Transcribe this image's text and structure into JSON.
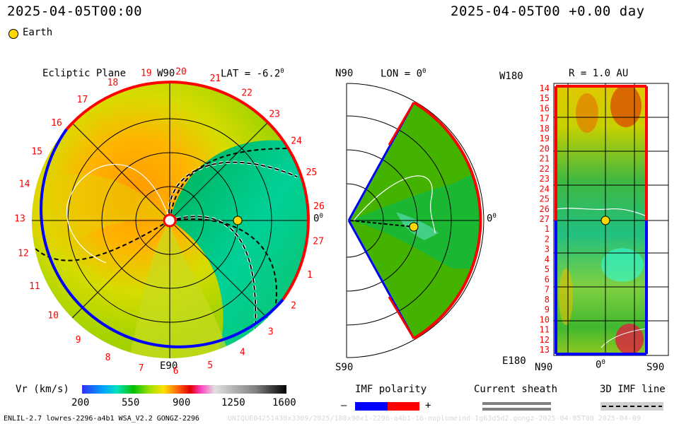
{
  "header": {
    "timestamp_left": "2025-04-05T00:00",
    "timestamp_right": "2025-04-05T00 +0.00 day",
    "legend_label": "Earth"
  },
  "colors": {
    "earth_marker": "#ffd800",
    "positive_polarity": "#ff0000",
    "negative_polarity": "#0000ff"
  },
  "panels": {
    "ecliptic": {
      "title": "Ecliptic Plane",
      "lat_label": "LAT = -6.2",
      "lat_sup": "0",
      "top_label": "W90",
      "bottom_label": "E90",
      "right_label": "0",
      "right_sup": "0",
      "carrington_labels": [
        "19",
        "20",
        "21",
        "22",
        "23",
        "24",
        "25",
        "26",
        "27",
        "1",
        "2",
        "3",
        "4",
        "5",
        "6",
        "7",
        "8",
        "9",
        "10",
        "11",
        "12",
        "13",
        "14",
        "15",
        "16",
        "17",
        "18"
      ]
    },
    "meridional": {
      "top_left": "N90",
      "lon_label": "LON = 0",
      "lon_sup": "0",
      "bottom_left": "S90",
      "right_label": "0",
      "right_sup": "0"
    },
    "radial": {
      "top_left": "W180",
      "r_label": "R = 1.0 AU",
      "bottom_left": "E180",
      "x_labels": [
        "N90",
        "0",
        "S90"
      ],
      "x_mid_sup": "0",
      "y_labels": [
        "14",
        "15",
        "16",
        "17",
        "18",
        "19",
        "20",
        "21",
        "22",
        "23",
        "24",
        "25",
        "26",
        "27",
        "1",
        "2",
        "3",
        "4",
        "5",
        "6",
        "7",
        "8",
        "9",
        "10",
        "11",
        "12",
        "13"
      ]
    }
  },
  "colorbar": {
    "label": "Vr (km/s)",
    "ticks": [
      "200",
      "550",
      "900",
      "1250",
      "1600"
    ]
  },
  "imf": {
    "title": "IMF polarity",
    "minus": "–",
    "plus": "+"
  },
  "sheath": {
    "title": "Current sheath"
  },
  "imf_line": {
    "title": "3D IMF line"
  },
  "footer": {
    "left": "ENLIL-2.7 lowres-2296-a4b1 WSA_V2.2 GONGZ-2296",
    "right": "UNIQUE04251430x3309/2025/180x90x1-2296-a4b1-16-noplumeind-1g63d5d2.gongz-2025-04-05T00 2025-04-09"
  }
}
